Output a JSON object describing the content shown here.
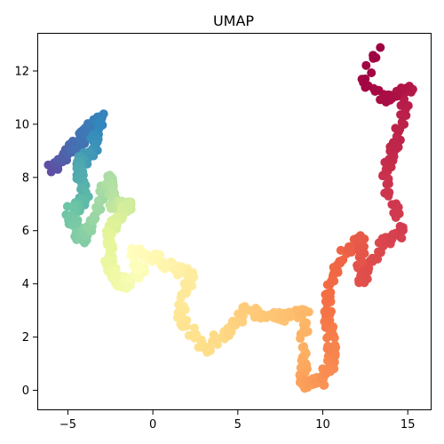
{
  "chart_data": {
    "type": "scatter",
    "title": "UMAP",
    "xlabel": "",
    "ylabel": "",
    "xlim": [
      -6.8,
      16.4
    ],
    "ylim": [
      -0.75,
      13.4
    ],
    "xticks": [
      -5,
      0,
      5,
      10,
      15
    ],
    "yticks": [
      0,
      2,
      4,
      6,
      8,
      10,
      12
    ],
    "grid": false,
    "legend": "none",
    "colormap": "Spectral",
    "color_by": "position along the curve (t from 0 to 1)",
    "path_waypoints": [
      {
        "t": 0.0,
        "x": -5.9,
        "y": 8.3
      },
      {
        "t": 0.03,
        "x": -5.2,
        "y": 8.9
      },
      {
        "t": 0.06,
        "x": -4.3,
        "y": 9.3
      },
      {
        "t": 0.09,
        "x": -3.1,
        "y": 10.3
      },
      {
        "t": 0.12,
        "x": -3.6,
        "y": 8.9
      },
      {
        "t": 0.15,
        "x": -4.5,
        "y": 8.5
      },
      {
        "t": 0.18,
        "x": -4.0,
        "y": 7.2
      },
      {
        "t": 0.21,
        "x": -4.9,
        "y": 6.7
      },
      {
        "t": 0.24,
        "x": -4.2,
        "y": 5.7
      },
      {
        "t": 0.27,
        "x": -3.5,
        "y": 6.4
      },
      {
        "t": 0.3,
        "x": -2.6,
        "y": 8.0
      },
      {
        "t": 0.33,
        "x": -2.3,
        "y": 6.9
      },
      {
        "t": 0.36,
        "x": -1.4,
        "y": 7.0
      },
      {
        "t": 0.39,
        "x": -2.5,
        "y": 6.1
      },
      {
        "t": 0.42,
        "x": -2.6,
        "y": 4.7
      },
      {
        "t": 0.45,
        "x": -1.8,
        "y": 4.0
      },
      {
        "t": 0.48,
        "x": -0.6,
        "y": 4.4
      },
      {
        "t": 0.5,
        "x": -1.2,
        "y": 5.3
      },
      {
        "t": 0.52,
        "x": 0.0,
        "y": 5.0
      },
      {
        "t": 0.54,
        "x": 1.3,
        "y": 4.6
      },
      {
        "t": 0.56,
        "x": 2.3,
        "y": 4.3
      },
      {
        "t": 0.58,
        "x": 1.5,
        "y": 2.8
      },
      {
        "t": 0.6,
        "x": 3.0,
        "y": 1.5
      },
      {
        "t": 0.62,
        "x": 4.5,
        "y": 2.3
      },
      {
        "t": 0.64,
        "x": 5.5,
        "y": 3.0
      },
      {
        "t": 0.66,
        "x": 7.8,
        "y": 2.7
      },
      {
        "t": 0.68,
        "x": 9.0,
        "y": 3.0
      },
      {
        "t": 0.7,
        "x": 8.8,
        "y": 1.2
      },
      {
        "t": 0.72,
        "x": 8.9,
        "y": 0.2
      },
      {
        "t": 0.74,
        "x": 10.0,
        "y": 0.4
      },
      {
        "t": 0.76,
        "x": 10.6,
        "y": 1.2
      },
      {
        "t": 0.78,
        "x": 10.3,
        "y": 2.5
      },
      {
        "t": 0.8,
        "x": 10.4,
        "y": 3.8
      },
      {
        "t": 0.82,
        "x": 11.3,
        "y": 5.2
      },
      {
        "t": 0.84,
        "x": 12.3,
        "y": 5.8
      },
      {
        "t": 0.86,
        "x": 12.2,
        "y": 4.0
      },
      {
        "t": 0.88,
        "x": 13.5,
        "y": 5.5
      },
      {
        "t": 0.9,
        "x": 14.7,
        "y": 5.9
      },
      {
        "t": 0.92,
        "x": 13.6,
        "y": 8.0
      },
      {
        "t": 0.94,
        "x": 14.3,
        "y": 9.4
      },
      {
        "t": 0.96,
        "x": 15.1,
        "y": 11.3
      },
      {
        "t": 0.98,
        "x": 13.6,
        "y": 11.0
      },
      {
        "t": 0.99,
        "x": 12.3,
        "y": 11.5
      },
      {
        "t": 1.0,
        "x": 13.2,
        "y": 12.7
      }
    ]
  }
}
